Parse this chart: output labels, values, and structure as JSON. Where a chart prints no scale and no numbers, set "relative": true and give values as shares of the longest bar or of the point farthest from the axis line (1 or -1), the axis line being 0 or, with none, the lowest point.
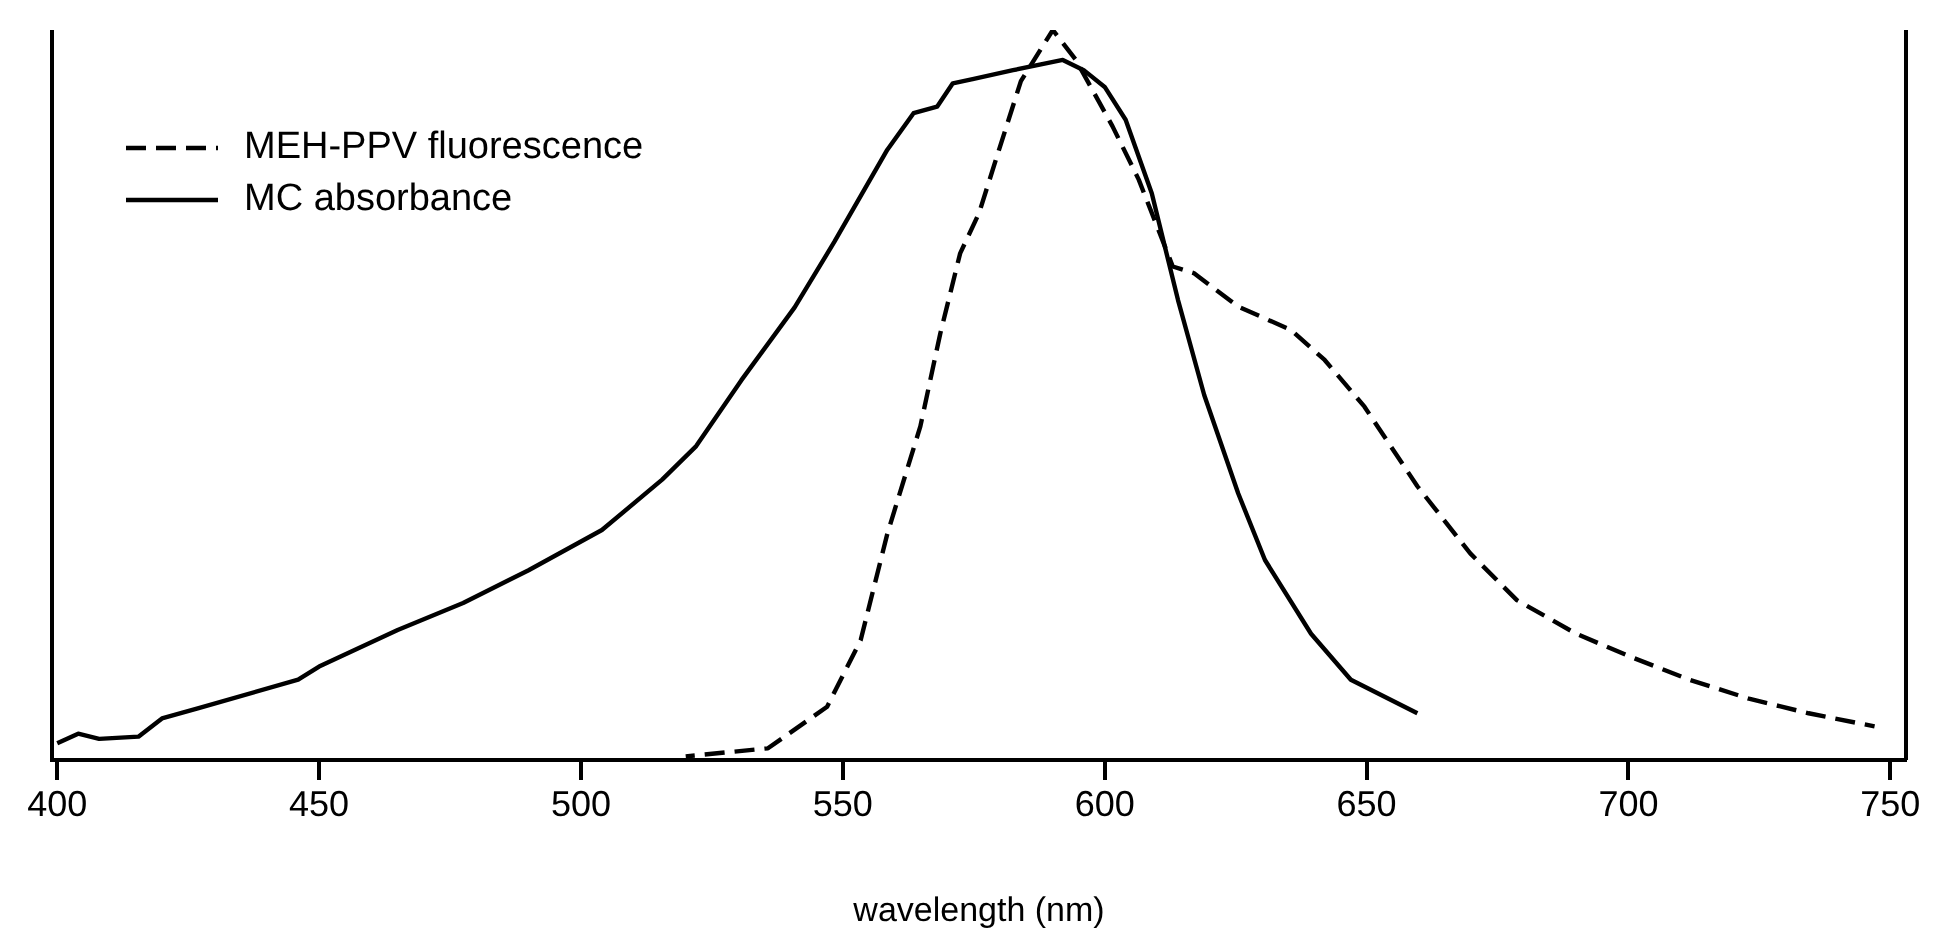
{
  "chart_data": {
    "type": "line",
    "xlabel": "wavelength (nm)",
    "relative": true,
    "xlim": [
      399,
      753
    ],
    "xticks": [
      400,
      450,
      500,
      550,
      600,
      650,
      700,
      750
    ],
    "legend": "top left",
    "marker": "none",
    "grid": false,
    "series": [
      {
        "name": "MEH-PPV fluorescence",
        "color": "#000000",
        "line_style": "dashed",
        "x": [
          520,
          535.7,
          547,
          553.4,
          558.5,
          564.8,
          568.6,
          572.4,
          576,
          580,
          584,
          590.1,
          594.5,
          601.5,
          606.5,
          613,
          617,
          625.5,
          635.6,
          642,
          649.6,
          659.7,
          669.8,
          678.7,
          690,
          700.2,
          711.6,
          723,
          734.4,
          747
        ],
        "values": [
          0.005,
          0.016,
          0.073,
          0.164,
          0.31,
          0.457,
          0.584,
          0.694,
          0.749,
          0.84,
          0.93,
          1,
          0.959,
          0.868,
          0.795,
          0.676,
          0.667,
          0.621,
          0.589,
          0.548,
          0.484,
          0.375,
          0.283,
          0.219,
          0.173,
          0.142,
          0.11,
          0.084,
          0.064,
          0.046
        ]
      },
      {
        "name": "MC absorbance",
        "color": "#000000",
        "line_style": "solid",
        "x": [
          400,
          404,
          408,
          415.5,
          420,
          427,
          446,
          450,
          465,
          477.5,
          490,
          504,
          515.5,
          522,
          530.6,
          540.8,
          548.4,
          558.5,
          563.5,
          568,
          571,
          575,
          582.5,
          592,
          596,
          600,
          604,
          609,
          614,
          619,
          625.5,
          630.6,
          639.4,
          647,
          659.7
        ],
        "values": [
          0.023,
          0.036,
          0.029,
          0.032,
          0.057,
          0.071,
          0.11,
          0.128,
          0.178,
          0.215,
          0.26,
          0.315,
          0.384,
          0.43,
          0.52,
          0.62,
          0.71,
          0.836,
          0.886,
          0.895,
          0.927,
          0.933,
          0.945,
          0.959,
          0.945,
          0.922,
          0.877,
          0.776,
          0.63,
          0.5,
          0.365,
          0.274,
          0.173,
          0.11,
          0.064
        ]
      }
    ]
  }
}
